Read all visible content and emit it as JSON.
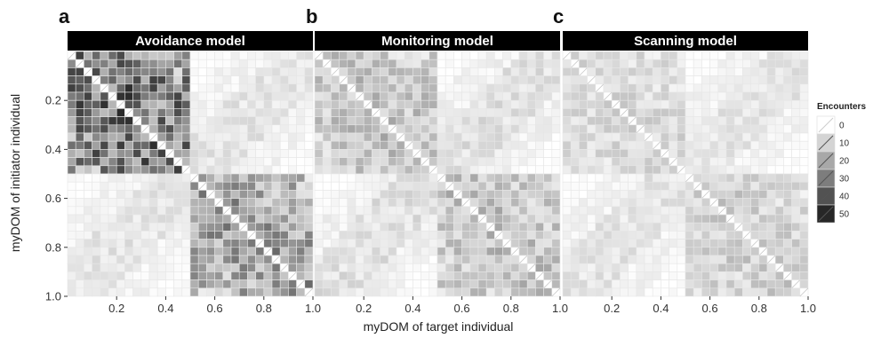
{
  "chart_data": {
    "type": "heatmap",
    "xlabel": "myDOM of target individual",
    "ylabel": "myDOM of initiator individual",
    "x_range": [
      0,
      1
    ],
    "y_range": [
      1,
      0
    ],
    "y_reversed": true,
    "x_ticks": [
      "0.2",
      "0.4",
      "0.6",
      "0.8",
      "1.0"
    ],
    "y_ticks": [
      "0.2",
      "0.4",
      "0.6",
      "0.8",
      "1.0"
    ],
    "grid_cells": 30,
    "grid": false,
    "legend": {
      "title": "Encounters",
      "position": "right",
      "breaks": [
        "0",
        "10",
        "20",
        "30",
        "40",
        "50"
      ]
    },
    "color_scale": {
      "low": "#ffffff",
      "high": "#111111",
      "limits": [
        0,
        55
      ]
    },
    "panels": [
      {
        "letter": "a",
        "title": "Avoidance model",
        "summary": {
          "low_block_mean": 32,
          "high_block_mean": 22,
          "off_block_near_mean": 6,
          "off_block_far_mean": 0.5,
          "diagonal": 0
        }
      },
      {
        "letter": "b",
        "title": "Monitoring model",
        "summary": {
          "low_block_mean": 14,
          "high_block_mean": 14,
          "off_block_near_mean": 7,
          "off_block_far_mean": 0.3,
          "diagonal": 0
        }
      },
      {
        "letter": "c",
        "title": "Scanning model",
        "summary": {
          "low_block_mean": 9,
          "high_block_mean": 11,
          "off_block_near_mean": 6,
          "off_block_far_mean": 0.3,
          "diagonal": 0
        }
      }
    ]
  }
}
